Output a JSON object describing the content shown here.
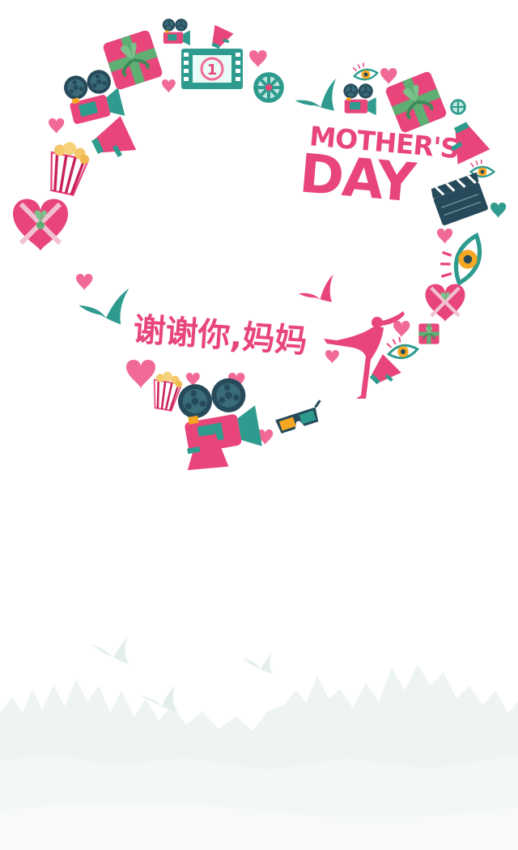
{
  "poster": {
    "headline_line1": "MOTHER'S",
    "headline_line2": "DAY",
    "tagline": "谢谢你,妈妈",
    "film_counter": "1"
  },
  "colors": {
    "pink": "#e8457a",
    "pink_light": "#f06a95",
    "teal": "#2e9b8e",
    "teal_dark": "#1f6d69",
    "navy": "#264a5a",
    "gold": "#f5a623",
    "green_ribbon": "#5fae74",
    "forest": "#eef4f3"
  },
  "icons": [
    "film-projector-icon",
    "gift-box-icon",
    "film-strip-icon",
    "film-reel-icon",
    "popcorn-icon",
    "megaphone-icon",
    "heart-icon",
    "eye-icon",
    "clapperboard-icon",
    "bird-icon",
    "3d-glasses-icon",
    "dancer-silhouette-icon"
  ]
}
